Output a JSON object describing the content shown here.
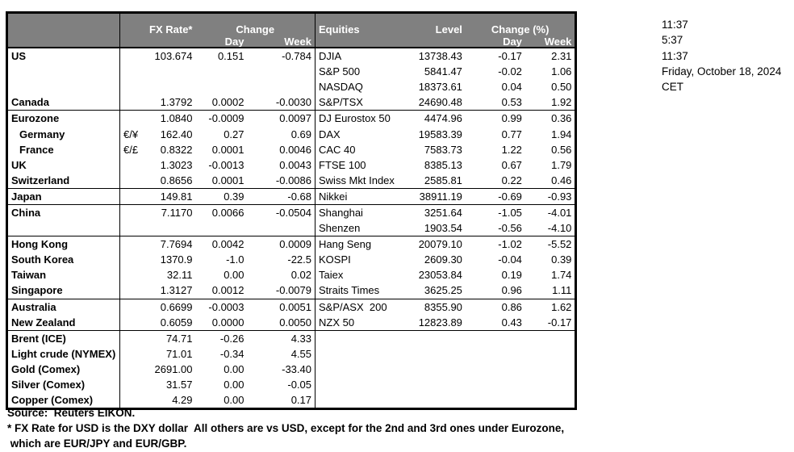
{
  "table": {
    "header": {
      "fx_rate": "FX Rate*",
      "change": "Change",
      "day": "Day",
      "week": "Week",
      "equities": "Equities",
      "level": "Level",
      "change_pct": "Change (%)",
      "eq_day": "Day",
      "eq_week": "Week"
    },
    "rows": [
      {
        "label": "US",
        "sym": "",
        "rate": "103.674",
        "day": "0.151",
        "week": "-0.784",
        "eq": "DJIA",
        "level": "13738.43",
        "eq_day": "-0.17",
        "eq_week": "2.31",
        "indent": false,
        "sep": false
      },
      {
        "label": "",
        "sym": "",
        "rate": "",
        "day": "",
        "week": "",
        "eq": "S&P 500",
        "level": "5841.47",
        "eq_day": "-0.02",
        "eq_week": "1.06",
        "indent": false,
        "sep": false
      },
      {
        "label": "",
        "sym": "",
        "rate": "",
        "day": "",
        "week": "",
        "eq": "NASDAQ",
        "level": "18373.61",
        "eq_day": "0.04",
        "eq_week": "0.50",
        "indent": false,
        "sep": false
      },
      {
        "label": "Canada",
        "sym": "",
        "rate": "1.3792",
        "day": "0.0002",
        "week": "-0.0030",
        "eq": "S&P/TSX",
        "level": "24690.48",
        "eq_day": "0.53",
        "eq_week": "1.92",
        "indent": false,
        "sep": true
      },
      {
        "label": "Eurozone",
        "sym": "",
        "rate": "1.0840",
        "day": "-0.0009",
        "week": "0.0097",
        "eq": "DJ Eurostox 50",
        "level": "4474.96",
        "eq_day": "0.99",
        "eq_week": "0.36",
        "indent": false,
        "sep": false
      },
      {
        "label": "Germany",
        "sym": "€/¥",
        "rate": "162.40",
        "day": "0.27",
        "week": "0.69",
        "eq": "DAX",
        "level": "19583.39",
        "eq_day": "0.77",
        "eq_week": "1.94",
        "indent": true,
        "sep": false
      },
      {
        "label": "France",
        "sym": "€/£",
        "rate": "0.8322",
        "day": "0.0001",
        "week": "0.0046",
        "eq": "CAC 40",
        "level": "7583.73",
        "eq_day": "1.22",
        "eq_week": "0.56",
        "indent": true,
        "sep": false
      },
      {
        "label": "UK",
        "sym": "",
        "rate": "1.3023",
        "day": "-0.0013",
        "week": "0.0043",
        "eq": "FTSE 100",
        "level": "8385.13",
        "eq_day": "0.67",
        "eq_week": "1.79",
        "indent": false,
        "sep": false
      },
      {
        "label": "Switzerland",
        "sym": "",
        "rate": "0.8656",
        "day": "0.0001",
        "week": "-0.0086",
        "eq": "Swiss Mkt Index",
        "level": "2585.81",
        "eq_day": "0.22",
        "eq_week": "0.46",
        "indent": false,
        "sep": true
      },
      {
        "label": "Japan",
        "sym": "",
        "rate": "149.81",
        "day": "0.39",
        "week": "-0.68",
        "eq": "Nikkei",
        "level": "38911.19",
        "eq_day": "-0.69",
        "eq_week": "-0.93",
        "indent": false,
        "sep": true
      },
      {
        "label": "China",
        "sym": "",
        "rate": "7.1170",
        "day": "0.0066",
        "week": "-0.0504",
        "eq": "Shanghai",
        "level": "3251.64",
        "eq_day": "-1.05",
        "eq_week": "-4.01",
        "indent": false,
        "sep": false
      },
      {
        "label": "",
        "sym": "",
        "rate": "",
        "day": "",
        "week": "",
        "eq": "Shenzen",
        "level": "1903.54",
        "eq_day": "-0.56",
        "eq_week": "-4.10",
        "indent": false,
        "sep": true
      },
      {
        "label": "Hong Kong",
        "sym": "",
        "rate": "7.7694",
        "day": "0.0042",
        "week": "0.0009",
        "eq": "Hang Seng",
        "level": "20079.10",
        "eq_day": "-1.02",
        "eq_week": "-5.52",
        "indent": false,
        "sep": false
      },
      {
        "label": "South Korea",
        "sym": "",
        "rate": "1370.9",
        "day": "-1.0",
        "week": "-22.5",
        "eq": "KOSPI",
        "level": "2609.30",
        "eq_day": "-0.04",
        "eq_week": "0.39",
        "indent": false,
        "sep": false
      },
      {
        "label": "Taiwan",
        "sym": "",
        "rate": "32.11",
        "day": "0.00",
        "week": "0.02",
        "eq": "Taiex",
        "level": "23053.84",
        "eq_day": "0.19",
        "eq_week": "1.74",
        "indent": false,
        "sep": false
      },
      {
        "label": "Singapore",
        "sym": "",
        "rate": "1.3127",
        "day": "0.0012",
        "week": "-0.0079",
        "eq": "Straits Times",
        "level": "3625.25",
        "eq_day": "0.96",
        "eq_week": "1.11",
        "indent": false,
        "sep": true
      },
      {
        "label": "Australia",
        "sym": "",
        "rate": "0.6699",
        "day": "-0.0003",
        "week": "0.0051",
        "eq": "S&P/ASX  200",
        "level": "8355.90",
        "eq_day": "0.86",
        "eq_week": "1.62",
        "indent": false,
        "sep": false
      },
      {
        "label": "New Zealand",
        "sym": "",
        "rate": "0.6059",
        "day": "0.0000",
        "week": "0.0050",
        "eq": "NZX 50",
        "level": "12823.89",
        "eq_day": "0.43",
        "eq_week": "-0.17",
        "indent": false,
        "sep": true
      },
      {
        "label": "Brent (ICE)",
        "sym": "",
        "rate": "74.71",
        "day": "-0.26",
        "week": "4.33",
        "eq": "",
        "level": "",
        "eq_day": "",
        "eq_week": "",
        "indent": false,
        "sep": false
      },
      {
        "label": "Light crude (NYMEX)",
        "sym": "",
        "rate": "71.01",
        "day": "-0.34",
        "week": "4.55",
        "eq": "",
        "level": "",
        "eq_day": "",
        "eq_week": "",
        "indent": false,
        "sep": false
      },
      {
        "label": "Gold (Comex)",
        "sym": "",
        "rate": "2691.00",
        "day": "0.00",
        "week": "-33.40",
        "eq": "",
        "level": "",
        "eq_day": "",
        "eq_week": "",
        "indent": false,
        "sep": false
      },
      {
        "label": "Silver (Comex)",
        "sym": "",
        "rate": "31.57",
        "day": "0.00",
        "week": "-0.05",
        "eq": "",
        "level": "",
        "eq_day": "",
        "eq_week": "",
        "indent": false,
        "sep": false
      },
      {
        "label": "Copper (Comex)",
        "sym": "",
        "rate": "4.29",
        "day": "0.00",
        "week": "0.17",
        "eq": "",
        "level": "",
        "eq_day": "",
        "eq_week": "",
        "indent": false,
        "sep": false
      }
    ]
  },
  "clock": {
    "lines": [
      "11:37",
      "5:37",
      "11:37",
      "Friday, October 18, 2024",
      "CET"
    ]
  },
  "footer": {
    "source": "Source:  Reuters EIKON.",
    "note1": "* FX Rate for USD is the DXY dollar  All others are vs USD, except for the 2nd and 3rd ones under Eurozone,",
    "note2": " which are EUR/JPY and EUR/GBP."
  },
  "colors": {
    "header_bg": "#808080",
    "header_text": "#ffffff",
    "border": "#000000",
    "text": "#000000"
  }
}
